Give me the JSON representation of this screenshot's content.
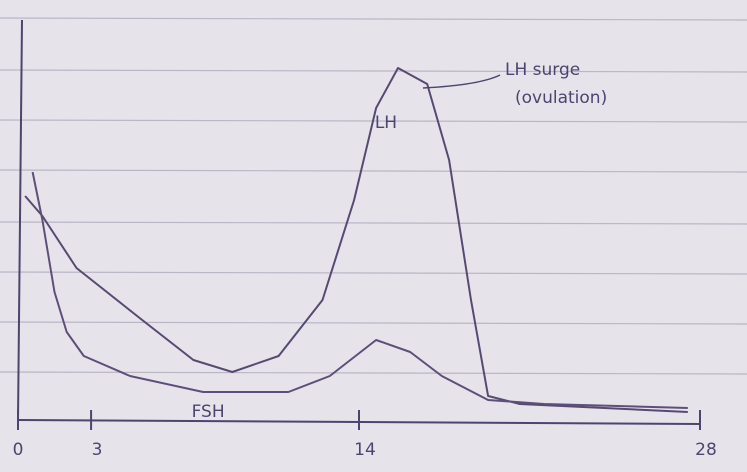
{
  "chart_data": {
    "type": "line",
    "annotations": [
      "LH surge",
      "(ovulation)"
    ],
    "xlim": [
      0,
      28
    ],
    "xticks": [
      0,
      3,
      14,
      28
    ],
    "ylim": [
      0,
      100
    ],
    "series": [
      {
        "name": "LH",
        "color": "#574a72",
        "x": [
          0.29,
          1.0,
          2.4,
          5.1,
          7.2,
          8.8,
          10.7,
          12.5,
          13.8,
          14.7,
          15.6,
          16.8,
          17.7,
          18.6,
          19.3,
          20.6,
          27.5
        ],
        "values": [
          56,
          51,
          38,
          25,
          15,
          12,
          16,
          30,
          55,
          78,
          88,
          84,
          65,
          30,
          6,
          4,
          2
        ]
      },
      {
        "name": "FSH",
        "color": "#5e4f7a",
        "x": [
          0.6,
          1.0,
          1.5,
          2.0,
          2.7,
          4.6,
          7.6,
          11.1,
          12.8,
          14.7,
          16.1,
          17.4,
          19.3,
          21.6,
          27.5
        ],
        "values": [
          62,
          50,
          32,
          22,
          16,
          11,
          7,
          7,
          11,
          20,
          17,
          11,
          5,
          4,
          3
        ]
      }
    ]
  }
}
